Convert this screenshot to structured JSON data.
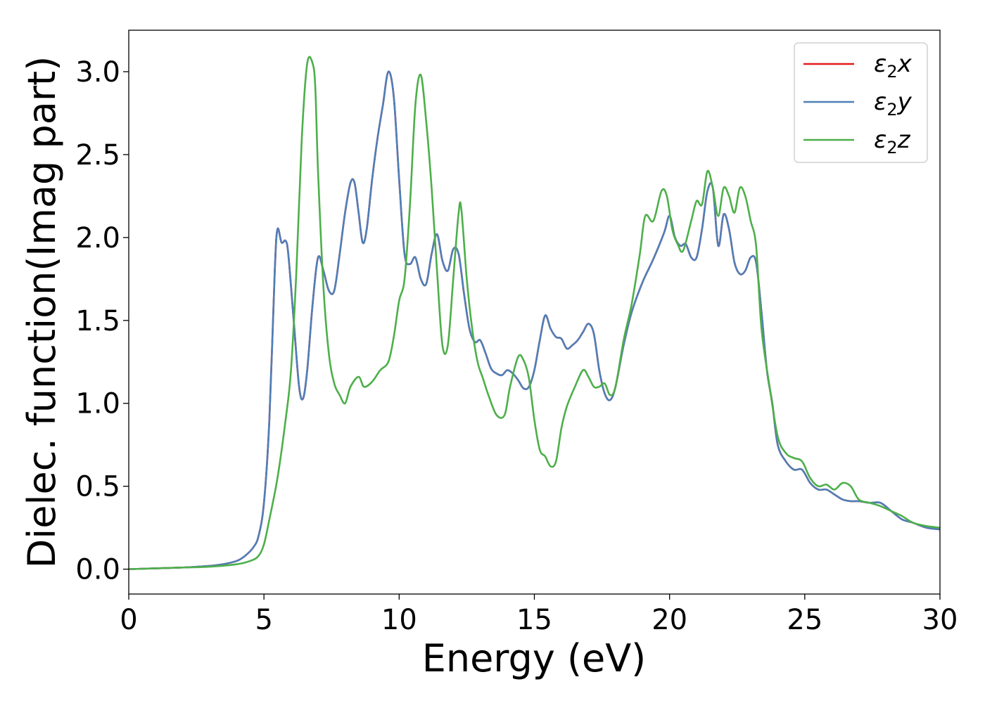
{
  "chart_data": {
    "type": "line",
    "title": "",
    "xlabel": "Energy (eV)",
    "ylabel": "Dielec. function(Imag part)",
    "xlim": [
      0,
      30
    ],
    "ylim": [
      -0.15,
      3.25
    ],
    "x_ticks": [
      0,
      5,
      10,
      15,
      20,
      25,
      30
    ],
    "y_ticks": [
      0.0,
      0.5,
      1.0,
      1.5,
      2.0,
      2.5,
      3.0
    ],
    "x_tick_labels": [
      "0",
      "5",
      "10",
      "15",
      "20",
      "25",
      "30"
    ],
    "y_tick_labels": [
      "0.0",
      "0.5",
      "1.0",
      "1.5",
      "2.0",
      "2.5",
      "3.0"
    ],
    "grid": false,
    "legend": {
      "position": "top-right"
    },
    "series": [
      {
        "name": "ε₂x",
        "legend_main": "ε",
        "legend_sub": "2",
        "legend_axis": "x",
        "color": "#e41a1c",
        "x": [
          0,
          1,
          2,
          3,
          3.5,
          4,
          4.3,
          4.6,
          4.8,
          5.0,
          5.2,
          5.4,
          5.5,
          5.65,
          5.8,
          5.9,
          6.1,
          6.3,
          6.45,
          6.6,
          6.8,
          7.0,
          7.2,
          7.4,
          7.6,
          7.8,
          8.0,
          8.2,
          8.35,
          8.5,
          8.65,
          8.8,
          9.0,
          9.2,
          9.4,
          9.6,
          9.8,
          10.0,
          10.2,
          10.4,
          10.6,
          10.8,
          11.0,
          11.2,
          11.4,
          11.6,
          11.8,
          12.0,
          12.2,
          12.4,
          12.6,
          12.8,
          13.0,
          13.2,
          13.4,
          13.6,
          13.8,
          14.0,
          14.2,
          14.4,
          14.6,
          14.8,
          15.0,
          15.2,
          15.4,
          15.6,
          15.8,
          16.0,
          16.2,
          16.4,
          16.6,
          16.8,
          17.0,
          17.2,
          17.4,
          17.6,
          17.8,
          18.0,
          18.3,
          18.6,
          19.0,
          19.4,
          19.8,
          20.0,
          20.2,
          20.4,
          20.6,
          20.8,
          21.0,
          21.2,
          21.4,
          21.6,
          21.8,
          22.0,
          22.2,
          22.4,
          22.6,
          22.8,
          23.0,
          23.2,
          23.4,
          23.6,
          23.8,
          24.0,
          24.3,
          24.6,
          24.9,
          25.2,
          25.5,
          25.8,
          26.1,
          26.4,
          26.7,
          27.0,
          27.4,
          27.8,
          28.2,
          28.6,
          29.0,
          29.5,
          30.0
        ],
        "y": [
          0.0,
          0.005,
          0.01,
          0.02,
          0.03,
          0.05,
          0.08,
          0.13,
          0.2,
          0.4,
          0.9,
          1.8,
          2.05,
          1.97,
          1.98,
          1.9,
          1.5,
          1.1,
          1.03,
          1.2,
          1.6,
          1.88,
          1.8,
          1.68,
          1.68,
          1.9,
          2.15,
          2.33,
          2.33,
          2.15,
          1.97,
          2.05,
          2.35,
          2.6,
          2.8,
          3.0,
          2.85,
          2.35,
          1.9,
          1.84,
          1.88,
          1.75,
          1.72,
          1.9,
          2.02,
          1.86,
          1.8,
          1.93,
          1.9,
          1.66,
          1.45,
          1.37,
          1.38,
          1.3,
          1.21,
          1.18,
          1.17,
          1.2,
          1.18,
          1.14,
          1.09,
          1.1,
          1.2,
          1.38,
          1.53,
          1.45,
          1.4,
          1.39,
          1.33,
          1.35,
          1.38,
          1.43,
          1.48,
          1.42,
          1.2,
          1.06,
          1.02,
          1.1,
          1.35,
          1.55,
          1.73,
          1.87,
          2.03,
          2.13,
          2.0,
          1.95,
          1.96,
          1.88,
          1.88,
          2.05,
          2.28,
          2.3,
          1.95,
          2.14,
          2.05,
          1.85,
          1.78,
          1.8,
          1.88,
          1.85,
          1.55,
          1.2,
          1.0,
          0.75,
          0.65,
          0.6,
          0.6,
          0.52,
          0.48,
          0.48,
          0.45,
          0.42,
          0.41,
          0.41,
          0.4,
          0.4,
          0.35,
          0.3,
          0.28,
          0.25,
          0.24
        ]
      },
      {
        "name": "ε₂y",
        "legend_main": "ε",
        "legend_sub": "2",
        "legend_axis": "y",
        "color": "#4f7fb8",
        "x": [
          0,
          1,
          2,
          3,
          3.5,
          4,
          4.3,
          4.6,
          4.8,
          5.0,
          5.2,
          5.4,
          5.5,
          5.65,
          5.8,
          5.9,
          6.1,
          6.3,
          6.45,
          6.6,
          6.8,
          7.0,
          7.2,
          7.4,
          7.6,
          7.8,
          8.0,
          8.2,
          8.35,
          8.5,
          8.65,
          8.8,
          9.0,
          9.2,
          9.4,
          9.6,
          9.8,
          10.0,
          10.2,
          10.4,
          10.6,
          10.8,
          11.0,
          11.2,
          11.4,
          11.6,
          11.8,
          12.0,
          12.2,
          12.4,
          12.6,
          12.8,
          13.0,
          13.2,
          13.4,
          13.6,
          13.8,
          14.0,
          14.2,
          14.4,
          14.6,
          14.8,
          15.0,
          15.2,
          15.4,
          15.6,
          15.8,
          16.0,
          16.2,
          16.4,
          16.6,
          16.8,
          17.0,
          17.2,
          17.4,
          17.6,
          17.8,
          18.0,
          18.3,
          18.6,
          19.0,
          19.4,
          19.8,
          20.0,
          20.2,
          20.4,
          20.6,
          20.8,
          21.0,
          21.2,
          21.4,
          21.6,
          21.8,
          22.0,
          22.2,
          22.4,
          22.6,
          22.8,
          23.0,
          23.2,
          23.4,
          23.6,
          23.8,
          24.0,
          24.3,
          24.6,
          24.9,
          25.2,
          25.5,
          25.8,
          26.1,
          26.4,
          26.7,
          27.0,
          27.4,
          27.8,
          28.2,
          28.6,
          29.0,
          29.5,
          30.0
        ],
        "y": [
          0.0,
          0.005,
          0.01,
          0.02,
          0.03,
          0.05,
          0.08,
          0.13,
          0.2,
          0.4,
          0.9,
          1.8,
          2.05,
          1.97,
          1.98,
          1.9,
          1.5,
          1.1,
          1.03,
          1.2,
          1.6,
          1.88,
          1.8,
          1.68,
          1.68,
          1.9,
          2.15,
          2.33,
          2.33,
          2.15,
          1.97,
          2.05,
          2.35,
          2.6,
          2.8,
          3.0,
          2.85,
          2.35,
          1.9,
          1.84,
          1.88,
          1.75,
          1.72,
          1.9,
          2.02,
          1.86,
          1.8,
          1.93,
          1.9,
          1.66,
          1.45,
          1.37,
          1.38,
          1.3,
          1.21,
          1.18,
          1.17,
          1.2,
          1.18,
          1.14,
          1.09,
          1.1,
          1.2,
          1.38,
          1.53,
          1.45,
          1.4,
          1.39,
          1.33,
          1.35,
          1.38,
          1.43,
          1.48,
          1.42,
          1.2,
          1.06,
          1.02,
          1.1,
          1.35,
          1.55,
          1.73,
          1.87,
          2.03,
          2.13,
          2.0,
          1.95,
          1.96,
          1.88,
          1.88,
          2.05,
          2.28,
          2.3,
          1.95,
          2.14,
          2.05,
          1.85,
          1.78,
          1.8,
          1.88,
          1.85,
          1.55,
          1.2,
          1.0,
          0.75,
          0.65,
          0.6,
          0.6,
          0.52,
          0.48,
          0.48,
          0.45,
          0.42,
          0.41,
          0.41,
          0.4,
          0.4,
          0.35,
          0.3,
          0.28,
          0.25,
          0.24
        ]
      },
      {
        "name": "ε₂z",
        "legend_main": "ε",
        "legend_sub": "2",
        "legend_axis": "z",
        "color": "#4daf4a",
        "x": [
          0,
          1,
          2,
          3,
          4,
          4.5,
          4.8,
          5.0,
          5.2,
          5.5,
          5.8,
          6.0,
          6.2,
          6.4,
          6.6,
          6.8,
          6.9,
          7.0,
          7.2,
          7.4,
          7.6,
          7.8,
          8.0,
          8.2,
          8.5,
          8.7,
          9.0,
          9.3,
          9.6,
          9.8,
          10.0,
          10.2,
          10.4,
          10.6,
          10.8,
          11.0,
          11.2,
          11.4,
          11.6,
          11.8,
          12.0,
          12.2,
          12.3,
          12.5,
          12.7,
          12.9,
          13.1,
          13.3,
          13.6,
          13.9,
          14.1,
          14.4,
          14.6,
          14.8,
          15.0,
          15.2,
          15.4,
          15.6,
          15.8,
          16.0,
          16.2,
          16.5,
          16.8,
          17.0,
          17.2,
          17.4,
          17.6,
          17.8,
          18.0,
          18.3,
          18.6,
          18.9,
          19.1,
          19.4,
          19.7,
          19.9,
          20.1,
          20.3,
          20.5,
          20.8,
          21.0,
          21.2,
          21.4,
          21.6,
          21.8,
          22.0,
          22.2,
          22.4,
          22.6,
          22.8,
          23.0,
          23.2,
          23.4,
          23.7,
          24.0,
          24.3,
          24.6,
          24.9,
          25.2,
          25.5,
          25.8,
          26.1,
          26.4,
          26.7,
          27.0,
          27.4,
          27.8,
          28.2,
          28.6,
          29.0,
          29.5,
          30.0
        ],
        "y": [
          0.0,
          0.005,
          0.01,
          0.015,
          0.03,
          0.05,
          0.08,
          0.15,
          0.3,
          0.55,
          0.9,
          1.2,
          1.8,
          2.6,
          3.05,
          3.05,
          2.9,
          2.4,
          1.7,
          1.3,
          1.12,
          1.05,
          1.0,
          1.1,
          1.16,
          1.1,
          1.13,
          1.2,
          1.25,
          1.4,
          1.62,
          1.75,
          2.2,
          2.8,
          2.98,
          2.7,
          2.3,
          1.8,
          1.35,
          1.35,
          1.75,
          2.15,
          2.17,
          1.75,
          1.45,
          1.25,
          1.15,
          1.05,
          0.93,
          0.93,
          1.1,
          1.28,
          1.26,
          1.15,
          0.9,
          0.72,
          0.68,
          0.62,
          0.65,
          0.85,
          0.98,
          1.1,
          1.2,
          1.16,
          1.1,
          1.1,
          1.12,
          1.05,
          1.1,
          1.38,
          1.6,
          1.9,
          2.13,
          2.1,
          2.28,
          2.25,
          2.05,
          1.96,
          1.92,
          2.1,
          2.22,
          2.2,
          2.4,
          2.3,
          2.13,
          2.3,
          2.25,
          2.15,
          2.3,
          2.25,
          2.1,
          1.95,
          1.45,
          1.1,
          0.8,
          0.7,
          0.67,
          0.65,
          0.55,
          0.5,
          0.51,
          0.48,
          0.52,
          0.5,
          0.42,
          0.4,
          0.38,
          0.35,
          0.32,
          0.28,
          0.26,
          0.25
        ]
      }
    ]
  }
}
